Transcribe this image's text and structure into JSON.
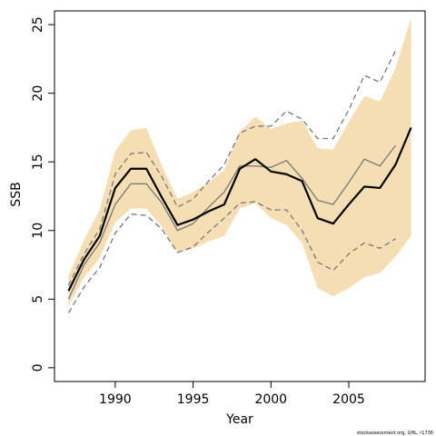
{
  "chart_data": {
    "type": "line",
    "xlabel": "Year",
    "ylabel": "SSB",
    "credit": "stockassessment.org, GHL, r1736",
    "xlim": [
      1986.1,
      2009.9
    ],
    "ylim": [
      -1.0,
      26.0
    ],
    "xticks": [
      1990,
      1995,
      2000,
      2005
    ],
    "yticks": [
      0,
      5,
      10,
      15,
      20,
      25
    ],
    "grid": false,
    "legend": "none",
    "colors": {
      "band": "#f5deb3",
      "main": "#000000",
      "secondary": "#777777",
      "dashed": "#777777"
    },
    "band": {
      "x": [
        1987,
        1988,
        1989,
        1990,
        1991,
        1992,
        1993,
        1994,
        1995,
        1996,
        1997,
        1998,
        1999,
        2000,
        2001,
        2002,
        2003,
        2004,
        2005,
        2006,
        2007,
        2008,
        2009
      ],
      "upper": [
        6.7,
        9.3,
        11.5,
        15.8,
        17.3,
        17.5,
        14.7,
        12.3,
        12.8,
        13.5,
        14.4,
        17.2,
        18.3,
        17.4,
        17.8,
        18.0,
        16.0,
        15.9,
        17.9,
        19.8,
        19.4,
        21.8,
        25.5
      ],
      "lower": [
        4.5,
        6.6,
        8.0,
        10.6,
        11.6,
        11.6,
        10.3,
        8.4,
        8.7,
        9.2,
        9.6,
        11.6,
        12.0,
        10.9,
        10.4,
        9.1,
        5.8,
        5.2,
        5.8,
        6.6,
        6.9,
        8.1,
        9.6
      ]
    },
    "series": [
      {
        "style": "solid-thick",
        "x": [
          1987,
          1988,
          1989,
          1990,
          1991,
          1992,
          1993,
          1994,
          1995,
          1996,
          1997,
          1998,
          1999,
          2000,
          2001,
          2002,
          2003,
          2004,
          2005,
          2006,
          2007,
          2008,
          2009
        ],
        "values": [
          5.6,
          7.9,
          9.6,
          13.1,
          14.5,
          14.5,
          12.4,
          10.4,
          10.8,
          11.4,
          11.9,
          14.5,
          15.2,
          14.3,
          14.1,
          13.6,
          10.9,
          10.5,
          11.9,
          13.2,
          13.1,
          14.8,
          17.5
        ]
      },
      {
        "style": "solid-thin",
        "x": [
          1987,
          1988,
          1989,
          1990,
          1991,
          1992,
          1993,
          1994,
          1995,
          1996,
          1997,
          1998,
          1999,
          2000,
          2001,
          2002,
          2003,
          2004,
          2005,
          2006,
          2007,
          2008
        ],
        "values": [
          5.0,
          7.5,
          9.1,
          11.9,
          13.4,
          13.4,
          12.0,
          10.0,
          10.5,
          11.7,
          12.8,
          14.7,
          14.7,
          14.6,
          15.1,
          13.8,
          12.2,
          11.9,
          13.5,
          15.2,
          14.7,
          16.2
        ]
      },
      {
        "style": "dashed",
        "x": [
          1987,
          1988,
          1989,
          1990,
          1991,
          1992,
          1993,
          1994,
          1995,
          1996,
          1997,
          1998,
          1999,
          2000,
          2001,
          2002,
          2003,
          2004,
          2005,
          2006,
          2007,
          2008
        ],
        "values": [
          6.0,
          8.3,
          10.1,
          14.1,
          15.6,
          15.7,
          13.9,
          11.7,
          12.3,
          13.6,
          14.8,
          17.1,
          17.6,
          17.6,
          18.7,
          18.1,
          16.7,
          16.7,
          18.8,
          21.3,
          20.8,
          23.1
        ]
      },
      {
        "style": "dashed",
        "x": [
          1987,
          1988,
          1989,
          1990,
          1991,
          1992,
          1993,
          1994,
          1995,
          1996,
          1997,
          1998,
          1999,
          2000,
          2001,
          2002,
          2003,
          2004,
          2005,
          2006,
          2007,
          2008
        ],
        "values": [
          4.0,
          5.9,
          7.3,
          9.8,
          11.2,
          11.1,
          10.1,
          8.4,
          8.8,
          9.9,
          10.9,
          12.0,
          12.1,
          11.5,
          11.5,
          10.0,
          7.7,
          7.1,
          8.3,
          9.1,
          8.7,
          9.4
        ]
      }
    ]
  }
}
